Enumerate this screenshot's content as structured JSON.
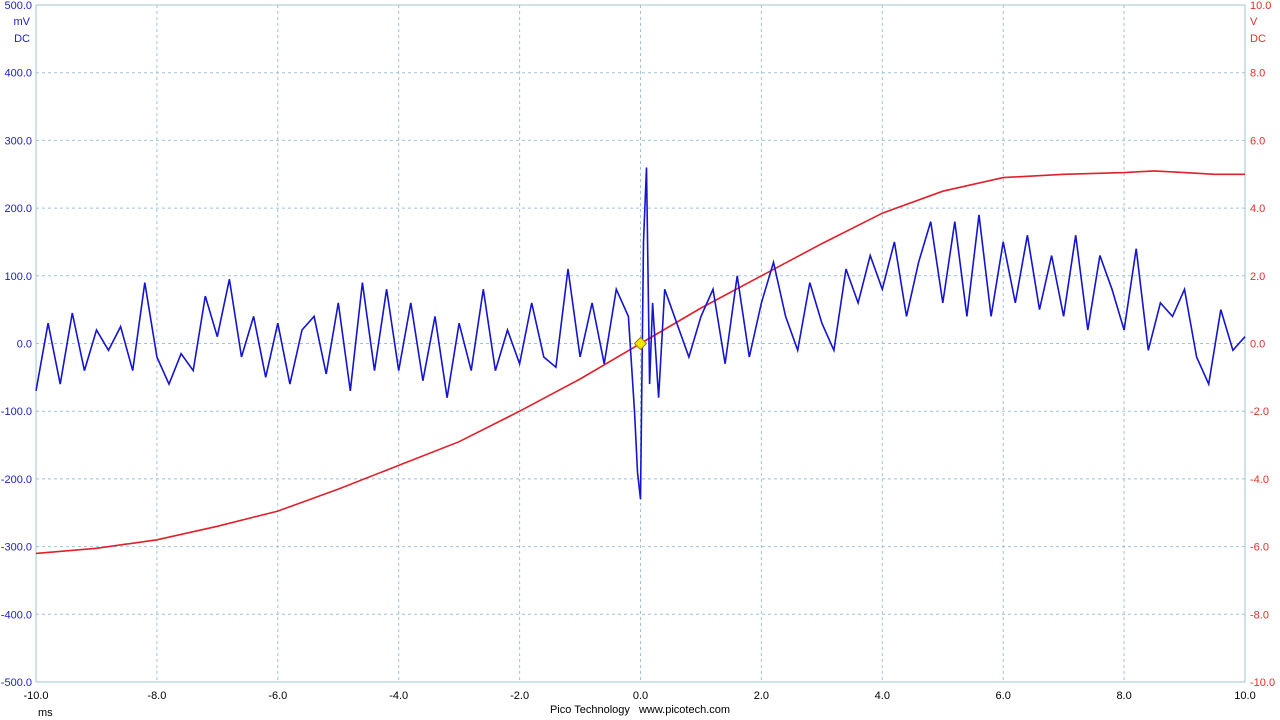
{
  "app": {
    "vendor": "Pico Technology",
    "website": "www.picotech.com"
  },
  "colors": {
    "channel_a": "#1414d2",
    "channel_b": "#e0202a",
    "grid": "#9fc4d6",
    "trigger_marker": "#f5e600"
  },
  "chart_data": {
    "type": "line",
    "x_axis": {
      "unit": "ms",
      "range": [
        -10,
        10
      ],
      "ticks": [
        "-10.0",
        "-8.0",
        "-6.0",
        "-4.0",
        "-2.0",
        "0.0",
        "2.0",
        "4.0",
        "6.0",
        "8.0",
        "10.0"
      ]
    },
    "y_axis_left": {
      "unit": "mV",
      "coupling": "DC",
      "range": [
        -500,
        500
      ],
      "ticks": [
        "500.0",
        "400.0",
        "300.0",
        "200.0",
        "100.0",
        "0.0",
        "-100.0",
        "-200.0",
        "-300.0",
        "-400.0",
        "-500.0"
      ]
    },
    "y_axis_right": {
      "unit": "V",
      "coupling": "DC",
      "range": [
        -10,
        10
      ],
      "ticks": [
        "10.0",
        "8.0",
        "6.0",
        "4.0",
        "2.0",
        "0.0",
        "-2.0",
        "-4.0",
        "-6.0",
        "-8.0",
        "-10.0"
      ]
    },
    "grid": true,
    "trigger": {
      "x": 0.0,
      "y": 0.0
    },
    "series": [
      {
        "axis": "left",
        "color": "#1414d2",
        "x": [
          -10.0,
          -9.8,
          -9.6,
          -9.4,
          -9.2,
          -9.0,
          -8.8,
          -8.6,
          -8.4,
          -8.2,
          -8.0,
          -7.8,
          -7.6,
          -7.4,
          -7.2,
          -7.0,
          -6.8,
          -6.6,
          -6.4,
          -6.2,
          -6.0,
          -5.8,
          -5.6,
          -5.4,
          -5.2,
          -5.0,
          -4.8,
          -4.6,
          -4.4,
          -4.2,
          -4.0,
          -3.8,
          -3.6,
          -3.4,
          -3.2,
          -3.0,
          -2.8,
          -2.6,
          -2.4,
          -2.2,
          -2.0,
          -1.8,
          -1.6,
          -1.4,
          -1.2,
          -1.0,
          -0.8,
          -0.6,
          -0.4,
          -0.2,
          -0.1,
          -0.05,
          0.0,
          0.05,
          0.1,
          0.15,
          0.2,
          0.3,
          0.4,
          0.6,
          0.8,
          1.0,
          1.2,
          1.4,
          1.6,
          1.8,
          2.0,
          2.2,
          2.4,
          2.6,
          2.8,
          3.0,
          3.2,
          3.4,
          3.6,
          3.8,
          4.0,
          4.2,
          4.4,
          4.6,
          4.8,
          5.0,
          5.2,
          5.4,
          5.6,
          5.8,
          6.0,
          6.2,
          6.4,
          6.6,
          6.8,
          7.0,
          7.2,
          7.4,
          7.6,
          7.8,
          8.0,
          8.2,
          8.4,
          8.6,
          8.8,
          9.0,
          9.2,
          9.4,
          9.6,
          9.8,
          10.0
        ],
        "y": [
          -70,
          30,
          -60,
          45,
          -40,
          20,
          -10,
          25,
          -40,
          90,
          -20,
          -60,
          -15,
          -40,
          70,
          10,
          95,
          -20,
          40,
          -50,
          30,
          -60,
          20,
          40,
          -45,
          60,
          -70,
          90,
          -40,
          80,
          -40,
          60,
          -55,
          40,
          -80,
          30,
          -40,
          80,
          -40,
          20,
          -30,
          60,
          -20,
          -35,
          110,
          -20,
          60,
          -30,
          80,
          40,
          -100,
          -190,
          -230,
          150,
          260,
          -60,
          60,
          -80,
          80,
          30,
          -20,
          40,
          80,
          -30,
          100,
          -20,
          60,
          120,
          40,
          -10,
          90,
          30,
          -10,
          110,
          60,
          130,
          80,
          150,
          40,
          120,
          180,
          60,
          180,
          40,
          190,
          40,
          150,
          60,
          160,
          50,
          130,
          40,
          160,
          20,
          130,
          80,
          20,
          140,
          -10,
          60,
          40,
          80,
          -20,
          -60,
          50,
          -10,
          10
        ]
      },
      {
        "axis": "right",
        "color": "#e0202a",
        "x": [
          -10.0,
          -9.0,
          -8.0,
          -7.0,
          -6.0,
          -5.0,
          -4.0,
          -3.0,
          -2.0,
          -1.0,
          0.0,
          1.0,
          2.0,
          3.0,
          4.0,
          5.0,
          6.0,
          7.0,
          8.0,
          8.5,
          9.0,
          9.5,
          10.0
        ],
        "y": [
          -6.2,
          -6.05,
          -5.8,
          -5.4,
          -4.95,
          -4.3,
          -3.6,
          -2.9,
          -2.0,
          -1.05,
          0.0,
          1.05,
          2.0,
          2.95,
          3.85,
          4.5,
          4.9,
          5.0,
          5.05,
          5.1,
          5.05,
          5.0,
          5.0
        ]
      }
    ]
  }
}
